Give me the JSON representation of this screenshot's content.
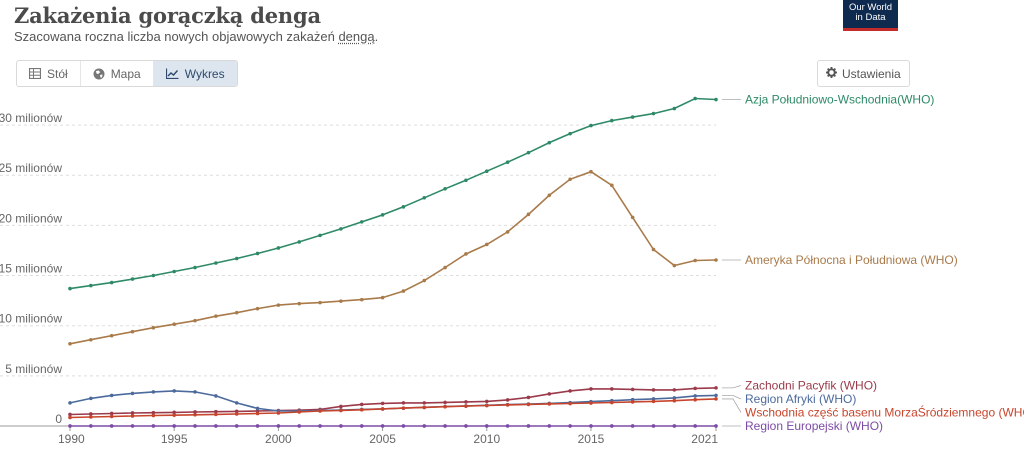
{
  "header": {
    "title": "Zakażenia gorączką denga",
    "subtitle_prefix": "Szacowana roczna liczba nowych objawowych zakażeń ",
    "subtitle_term": "dengą",
    "subtitle_suffix": ".",
    "logo_line1": "Our World",
    "logo_line2": "in Data"
  },
  "tabs": [
    {
      "label": "Stół",
      "icon": "table-icon",
      "active": false
    },
    {
      "label": "Mapa",
      "icon": "globe-icon",
      "active": false
    },
    {
      "label": "Wykres",
      "icon": "line-chart-icon",
      "active": true
    }
  ],
  "settings_label": "Ustawienia",
  "chart_data": {
    "type": "line",
    "title": "Zakażenia gorączką denga",
    "xlabel": "",
    "ylabel": "",
    "xlim": [
      1990,
      2021
    ],
    "ylim": [
      0,
      33000000
    ],
    "x_ticks": [
      {
        "value": 1990,
        "label": "1990"
      },
      {
        "value": 1995,
        "label": "1995"
      },
      {
        "value": 2000,
        "label": "2000"
      },
      {
        "value": 2005,
        "label": "2005"
      },
      {
        "value": 2010,
        "label": "2010"
      },
      {
        "value": 2015,
        "label": "2015"
      },
      {
        "value": 2021,
        "label": "2021"
      }
    ],
    "y_ticks": [
      {
        "value": 0,
        "label": "0"
      },
      {
        "value": 5000000,
        "label": "5 milionów"
      },
      {
        "value": 10000000,
        "label": "10 milionów"
      },
      {
        "value": 15000000,
        "label": "15 milionów"
      },
      {
        "value": 20000000,
        "label": "20 milionów"
      },
      {
        "value": 25000000,
        "label": "25 milionów"
      },
      {
        "value": 30000000,
        "label": "30 milionów"
      }
    ],
    "grid": "horizontal dashed",
    "legend": "right, labels at line ends",
    "x": [
      1990,
      1991,
      1992,
      1993,
      1994,
      1995,
      1996,
      1997,
      1998,
      1999,
      2000,
      2001,
      2002,
      2003,
      2004,
      2005,
      2006,
      2007,
      2008,
      2009,
      2010,
      2011,
      2012,
      2013,
      2014,
      2015,
      2016,
      2017,
      2018,
      2019,
      2020,
      2021
    ],
    "series": [
      {
        "name": "Azja Południowo-Wschodnia(WHO)",
        "color": "#2e8a66",
        "values": [
          13700000,
          14000000,
          14300000,
          14650000,
          15000000,
          15400000,
          15800000,
          16250000,
          16700000,
          17200000,
          17750000,
          18350000,
          19000000,
          19650000,
          20350000,
          21050000,
          21850000,
          22750000,
          23650000,
          24500000,
          25400000,
          26300000,
          27250000,
          28250000,
          29150000,
          29950000,
          30450000,
          30800000,
          31150000,
          31650000,
          32650000,
          32550000
        ]
      },
      {
        "name": "Ameryka Północna i Południowa (WHO)",
        "color": "#a97a4a",
        "values": [
          8200000,
          8600000,
          9000000,
          9400000,
          9800000,
          10150000,
          10500000,
          10950000,
          11300000,
          11700000,
          12050000,
          12200000,
          12300000,
          12450000,
          12600000,
          12800000,
          13450000,
          14500000,
          15800000,
          17150000,
          18100000,
          19350000,
          21100000,
          23000000,
          24600000,
          25350000,
          24000000,
          20800000,
          17600000,
          16000000,
          16500000,
          16550000
        ]
      },
      {
        "name": "Zachodni Pacyfik (WHO)",
        "color": "#9b3a4a",
        "values": [
          1150000,
          1200000,
          1250000,
          1300000,
          1330000,
          1360000,
          1400000,
          1430000,
          1460000,
          1500000,
          1540000,
          1580000,
          1650000,
          1950000,
          2150000,
          2250000,
          2300000,
          2300000,
          2350000,
          2400000,
          2450000,
          2600000,
          2850000,
          3200000,
          3500000,
          3700000,
          3700000,
          3650000,
          3600000,
          3600000,
          3750000,
          3800000
        ]
      },
      {
        "name": "Region Afryki (WHO)",
        "color": "#4c6a9c",
        "values": [
          2300000,
          2750000,
          3050000,
          3250000,
          3400000,
          3500000,
          3400000,
          3000000,
          2300000,
          1750000,
          1500000,
          1500000,
          1550000,
          1600000,
          1650000,
          1700000,
          1780000,
          1860000,
          1940000,
          2000000,
          2060000,
          2130000,
          2190000,
          2250000,
          2330000,
          2430000,
          2520000,
          2620000,
          2700000,
          2800000,
          3000000,
          3050000
        ]
      },
      {
        "name": "Wschodnia część basenu MorzaŚródziemnego (WHO)",
        "color": "#c7452c",
        "values": [
          850000,
          900000,
          950000,
          1000000,
          1050000,
          1080000,
          1120000,
          1160000,
          1200000,
          1250000,
          1300000,
          1400000,
          1500000,
          1550000,
          1620000,
          1700000,
          1780000,
          1850000,
          1920000,
          1980000,
          2040000,
          2100000,
          2150000,
          2200000,
          2240000,
          2290000,
          2340000,
          2400000,
          2450000,
          2520000,
          2620000,
          2700000
        ]
      },
      {
        "name": "Region Europejski (WHO)",
        "color": "#7c4ba5",
        "values": [
          2000,
          2000,
          2000,
          2000,
          2000,
          2000,
          2000,
          2000,
          2000,
          2000,
          2000,
          2000,
          2000,
          2000,
          2000,
          2000,
          2000,
          2000,
          2000,
          2000,
          2000,
          2000,
          2000,
          2000,
          2000,
          2000,
          2000,
          2000,
          2000,
          2000,
          2000,
          2000
        ]
      }
    ]
  }
}
